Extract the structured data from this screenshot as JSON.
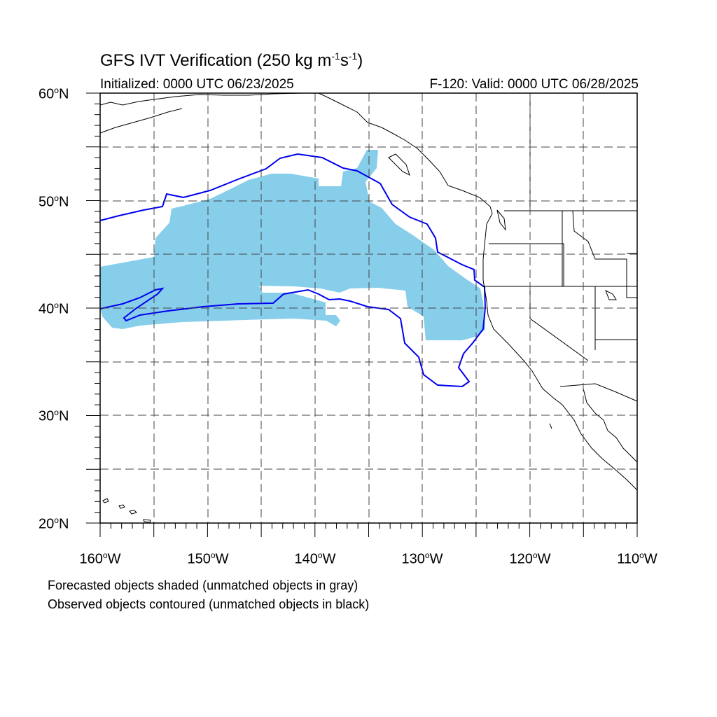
{
  "title": {
    "main": "GFS IVT Verification (250 kg m",
    "exp1": "-1",
    "mid": "s",
    "exp2": "-1",
    "close": ")"
  },
  "subtitle_left": "Initialized: 0000 UTC 06/23/2025",
  "subtitle_right": "F-120: Valid: 0000 UTC 06/28/2025",
  "map": {
    "lon_range": [
      -160,
      -110
    ],
    "lat_range": [
      20,
      60
    ],
    "lat_ticks": [
      {
        "value": 60,
        "label": "60",
        "suffix": "N"
      },
      {
        "value": 50,
        "label": "50",
        "suffix": "N"
      },
      {
        "value": 40,
        "label": "40",
        "suffix": "N"
      },
      {
        "value": 30,
        "label": "30",
        "suffix": "N"
      },
      {
        "value": 20,
        "label": "20",
        "suffix": "N"
      }
    ],
    "lon_ticks": [
      {
        "value": -160,
        "label": "160",
        "suffix": "W"
      },
      {
        "value": -150,
        "label": "150",
        "suffix": "W"
      },
      {
        "value": -140,
        "label": "140",
        "suffix": "W"
      },
      {
        "value": -130,
        "label": "130",
        "suffix": "W"
      },
      {
        "value": -120,
        "label": "120",
        "suffix": "W"
      },
      {
        "value": -110,
        "label": "110",
        "suffix": "W"
      }
    ],
    "grid": "dashed",
    "forecast_fill_color": "#87ceeb",
    "observed_contour_color": "#0000ee",
    "coastline_color": "#000000"
  },
  "legend": {
    "line1": "Forecasted objects shaded (unmatched objects in gray)",
    "line2": "Observed objects contoured (unmatched objects in black)"
  }
}
